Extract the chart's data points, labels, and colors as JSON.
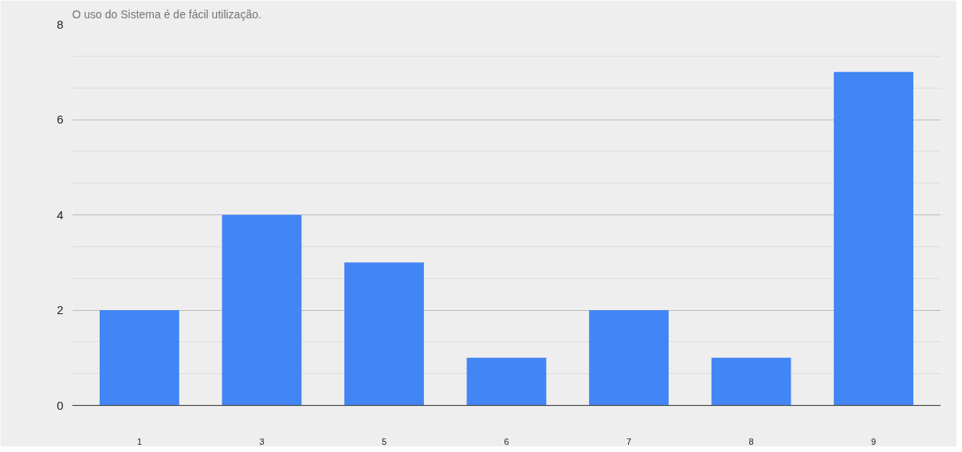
{
  "chart_data": {
    "type": "bar",
    "title": "O uso do Sistema é de fácil utilização.",
    "categories": [
      "1",
      "3",
      "5",
      "6",
      "7",
      "8",
      "9"
    ],
    "values": [
      2,
      4,
      3,
      1,
      2,
      1,
      7
    ],
    "color": "#4285f4",
    "ylim": [
      -0.5,
      8
    ],
    "yticks": [
      0,
      2,
      4,
      6,
      8
    ],
    "grid": "y"
  }
}
